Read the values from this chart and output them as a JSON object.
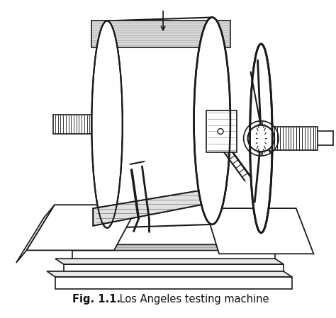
{
  "title_bold": "Fig. 1.1.",
  "caption_rest": " Los Angeles testing machine",
  "bg_color": "#ffffff",
  "line_color": "#1a1a1a",
  "fig_width": 4.74,
  "fig_height": 4.49,
  "caption_fontsize": 10.5
}
